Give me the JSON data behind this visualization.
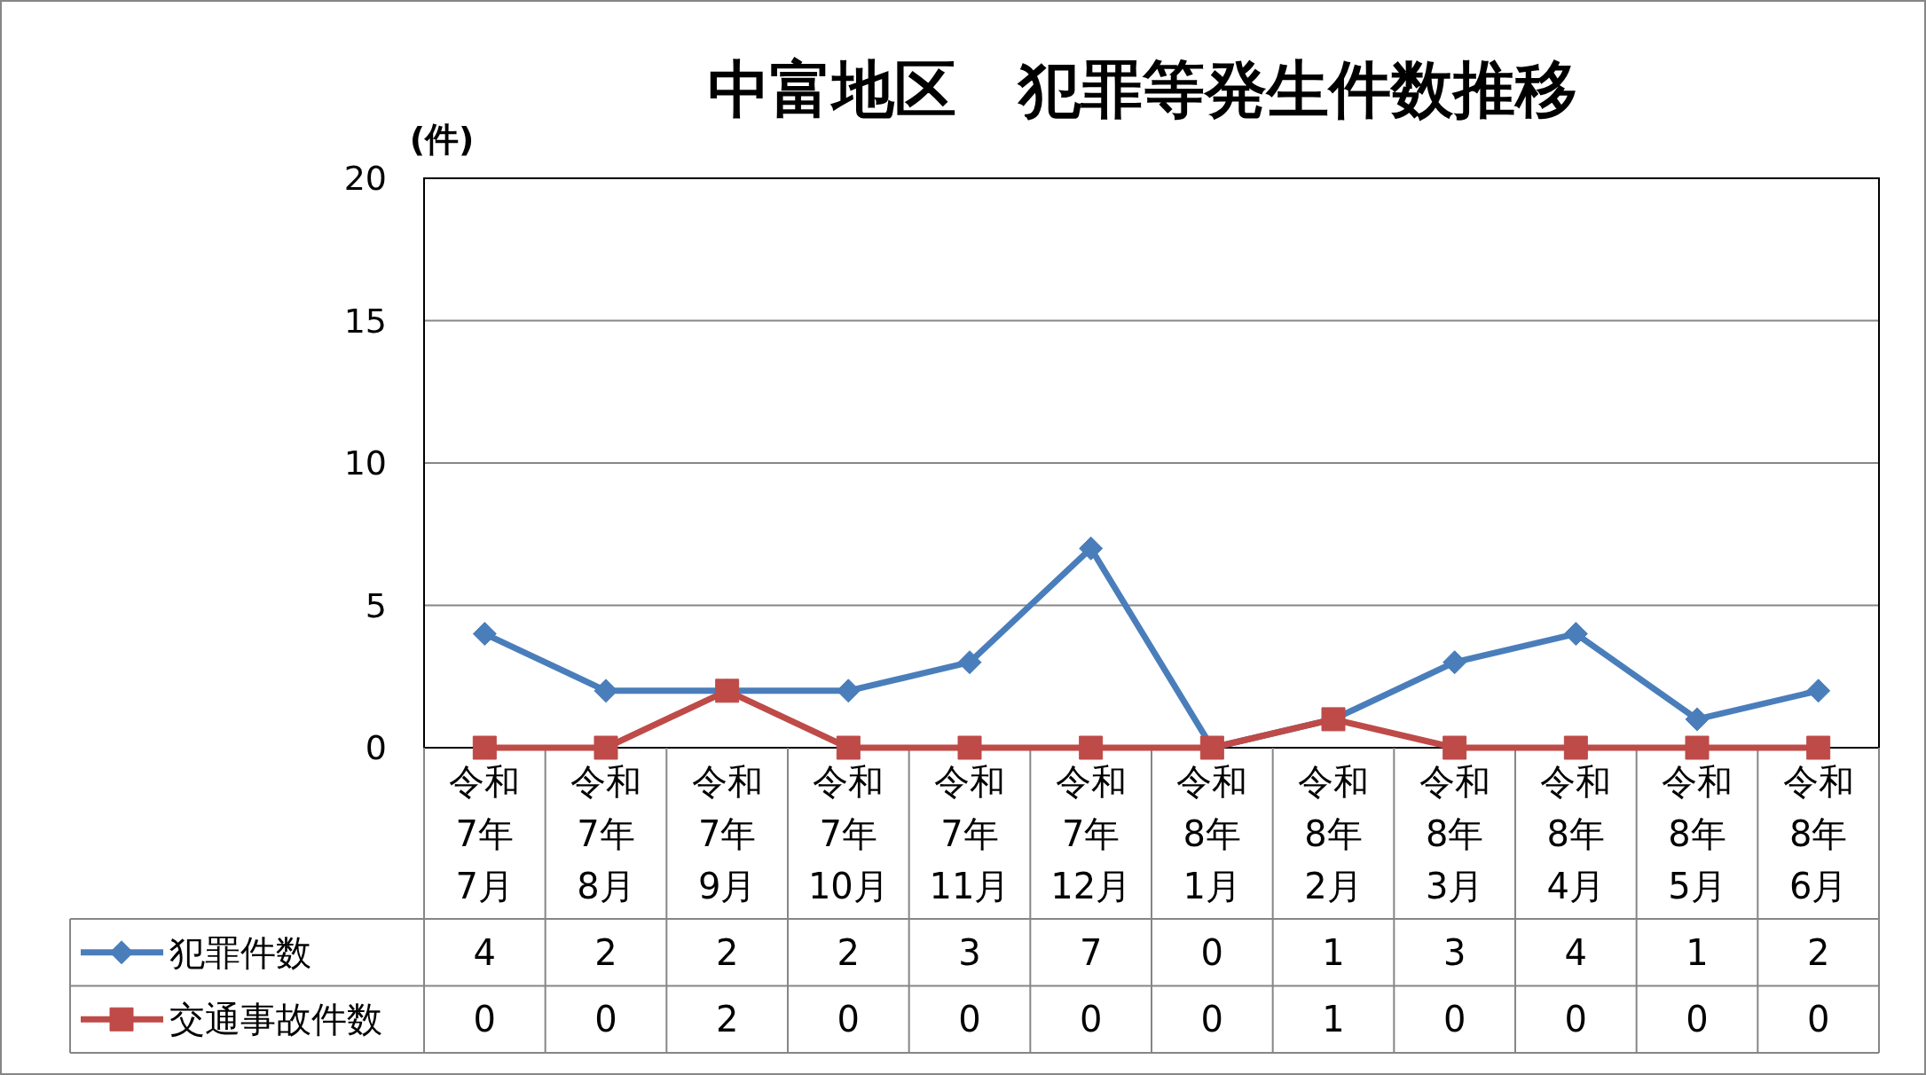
{
  "chart_data": {
    "type": "line",
    "title": "中富地区　犯罪等発生件数推移",
    "ylabel": "(件)",
    "categories": [
      "令和7年7月",
      "令和7年8月",
      "令和7年9月",
      "令和7年10月",
      "令和7年11月",
      "令和7年12月",
      "令和8年1月",
      "令和8年2月",
      "令和8年3月",
      "令和8年4月",
      "令和8年5月",
      "令和8年6月"
    ],
    "series": [
      {
        "name": "犯罪件数",
        "color": "#4a7ebb",
        "marker": "diamond",
        "values": [
          4,
          2,
          2,
          2,
          3,
          7,
          0,
          1,
          3,
          4,
          1,
          2
        ]
      },
      {
        "name": "交通事故件数",
        "color": "#be4b48",
        "marker": "square",
        "values": [
          0,
          0,
          2,
          0,
          0,
          0,
          0,
          1,
          0,
          0,
          0,
          0
        ]
      }
    ],
    "ylim": [
      0,
      20
    ],
    "yticks": [
      0,
      5,
      10,
      15,
      20
    ],
    "grid": "y",
    "legend": "bottom left",
    "data_labels": true,
    "line_style": "solid"
  }
}
